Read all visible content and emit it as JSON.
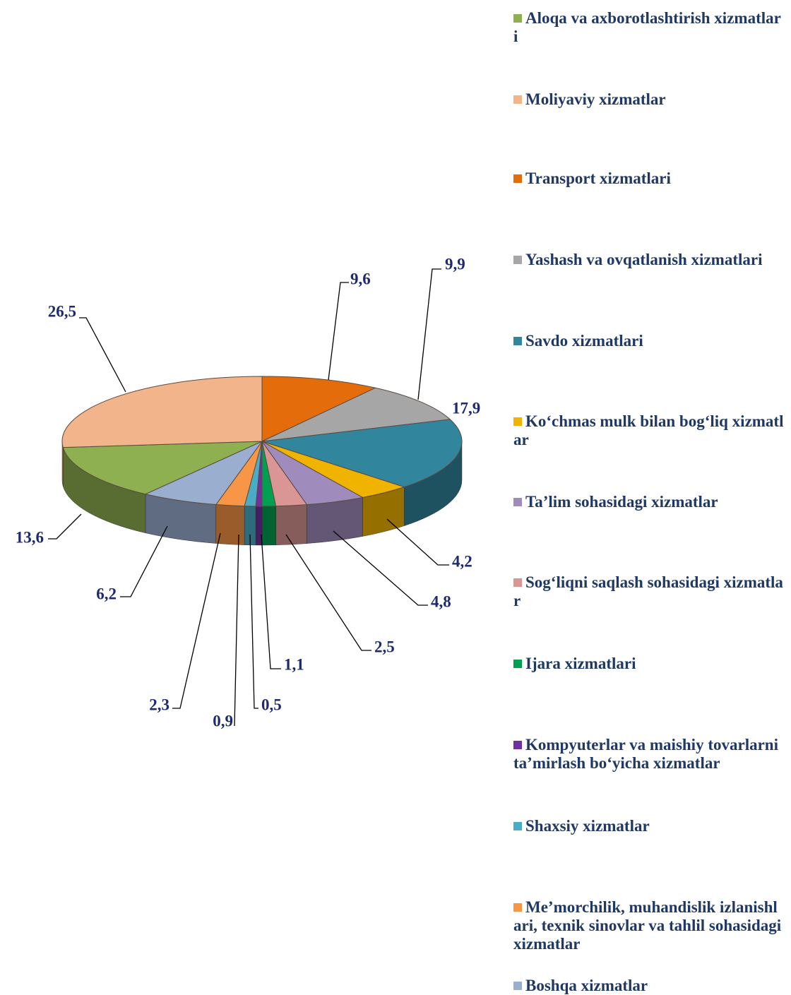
{
  "chart_data": {
    "type": "pie",
    "categories": [
      "Aloqa va axborotlashtirish xizmatlari",
      "Moliyaviy xizmatlar",
      "Transport xizmatlari",
      "Yashash va ovqatlanish xizmatlari",
      "Savdo xizmatlari",
      "Ko‘chmas mulk bilan bog‘liq xizmatlar",
      "Ta’lim sohasidagi xizmatlar",
      "Sog‘liqni saqlash sohasidagi xizmatlar",
      "Ijara xizmatlari",
      "Kompyuterlar va maishiy tovarlarni ta’mirlash bo‘yicha xizmatlar",
      "Shaxsiy xizmatlar",
      "Me’morchilik, muhandislik izlanishlari, texnik sinovlar va tahlil sohasidagi xizmatlar",
      "Boshqa xizmatlar"
    ],
    "values": [
      13.6,
      26.5,
      9.6,
      9.9,
      17.9,
      4.2,
      4.8,
      2.5,
      1.1,
      0.5,
      0.9,
      2.3,
      6.2
    ],
    "value_labels": [
      "13,6",
      "26,5",
      "9,6",
      "9,9",
      "17,9",
      "4,2",
      "4,8",
      "2,5",
      "1,1",
      "0,5",
      "0,9",
      "2,3",
      "6,2"
    ],
    "colors": [
      "#8fb050",
      "#f2b48a",
      "#e46c0a",
      "#a6a6a6",
      "#31859c",
      "#f0b400",
      "#a08cbc",
      "#d99694",
      "#00a050",
      "#7030a0",
      "#4bacc6",
      "#f79646",
      "#9aaed0"
    ]
  }
}
